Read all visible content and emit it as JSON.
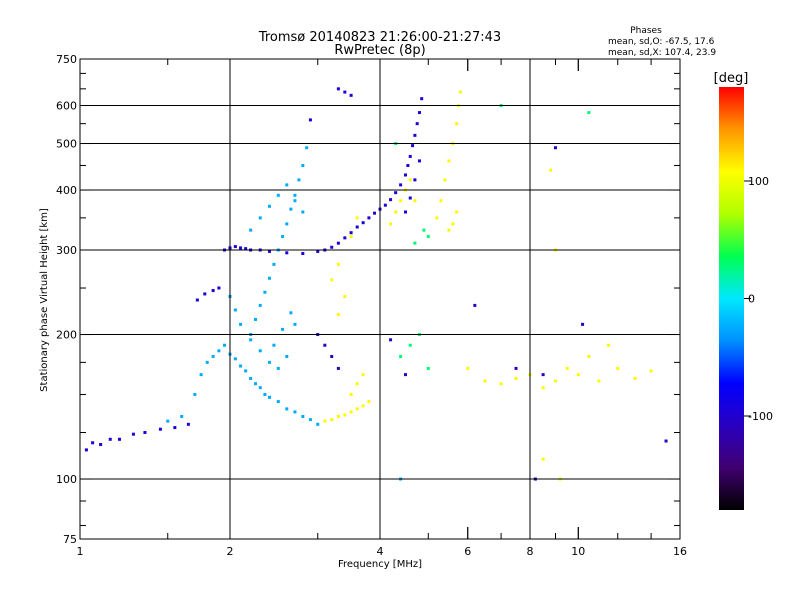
{
  "chart_data": {
    "type": "scatter",
    "title": "Tromsø 20140823 21:26:00-21:27:43",
    "subtitle": "RwPretec (8p)",
    "xlabel": "Frequency [MHz]",
    "ylabel": "Stationary phase Virtual Height [km]",
    "x_scale": "log",
    "y_scale": "log",
    "xlim": [
      1,
      16
    ],
    "ylim": [
      75,
      750
    ],
    "x_ticks": [
      1,
      2,
      4,
      6,
      8,
      10,
      16
    ],
    "y_ticks": [
      75,
      100,
      200,
      300,
      400,
      500,
      600,
      750
    ],
    "x_major_grid": [
      2,
      4,
      8
    ],
    "y_major_grid": [
      100,
      200,
      300,
      400,
      500,
      600
    ],
    "x_minor_ticks": [
      1.5,
      3,
      5,
      6,
      7,
      9,
      10,
      12,
      14
    ],
    "y_minor_ticks": [
      80,
      90,
      125,
      150,
      175,
      250,
      350,
      450,
      550,
      650,
      700
    ],
    "grid": true,
    "phase_box": {
      "title": "Phases",
      "line1": "mean, sd,O: -67.5, 17.6",
      "line2": "mean, sd,X: 107.4, 23.9"
    },
    "colorbar": {
      "label": "[deg]",
      "range": [
        -180,
        180
      ],
      "ticks": [
        100,
        0,
        -100
      ],
      "colormap": [
        "#000000",
        "#400070",
        "#2a00c0",
        "#0000ff",
        "#0090ff",
        "#00e8ff",
        "#00ff50",
        "#b0ff00",
        "#ffff00",
        "#ff9600",
        "#ff0000"
      ]
    },
    "series": [
      {
        "phase": -95,
        "points": [
          [
            1.03,
            115
          ],
          [
            1.06,
            119
          ],
          [
            1.1,
            118
          ],
          [
            1.15,
            121
          ],
          [
            1.2,
            121
          ],
          [
            1.28,
            124
          ],
          [
            1.35,
            125
          ],
          [
            1.45,
            127
          ],
          [
            1.55,
            128
          ],
          [
            1.65,
            130
          ],
          [
            1.72,
            236
          ],
          [
            1.78,
            243
          ],
          [
            1.85,
            247
          ],
          [
            1.9,
            250
          ],
          [
            1.95,
            300
          ],
          [
            2.0,
            303
          ],
          [
            2.05,
            305
          ],
          [
            2.1,
            303
          ],
          [
            2.15,
            302
          ],
          [
            2.2,
            300
          ],
          [
            2.3,
            300
          ],
          [
            2.4,
            298
          ],
          [
            2.6,
            296
          ],
          [
            2.8,
            295
          ],
          [
            3.0,
            298
          ],
          [
            3.1,
            300
          ],
          [
            3.2,
            304
          ],
          [
            3.3,
            310
          ],
          [
            3.4,
            318
          ],
          [
            3.5,
            326
          ],
          [
            3.6,
            335
          ],
          [
            3.7,
            342
          ],
          [
            3.8,
            350
          ],
          [
            3.9,
            358
          ],
          [
            4.0,
            365
          ],
          [
            4.1,
            372
          ],
          [
            4.2,
            382
          ],
          [
            4.3,
            395
          ],
          [
            4.4,
            410
          ],
          [
            4.5,
            430
          ],
          [
            4.55,
            450
          ],
          [
            4.6,
            470
          ],
          [
            4.65,
            495
          ],
          [
            4.7,
            520
          ],
          [
            4.75,
            550
          ],
          [
            4.8,
            580
          ],
          [
            4.85,
            620
          ],
          [
            4.5,
            360
          ],
          [
            4.6,
            385
          ],
          [
            4.7,
            420
          ],
          [
            4.8,
            460
          ],
          [
            3.3,
            650
          ],
          [
            3.4,
            640
          ],
          [
            3.5,
            630
          ],
          [
            2.9,
            560
          ]
        ]
      },
      {
        "phase": -25,
        "points": [
          [
            1.5,
            132
          ],
          [
            1.6,
            135
          ],
          [
            1.7,
            150
          ],
          [
            1.75,
            165
          ],
          [
            1.8,
            175
          ],
          [
            1.85,
            180
          ],
          [
            1.9,
            185
          ],
          [
            1.95,
            190
          ],
          [
            2.0,
            182
          ],
          [
            2.05,
            178
          ],
          [
            2.1,
            172
          ],
          [
            2.15,
            168
          ],
          [
            2.2,
            162
          ],
          [
            2.25,
            158
          ],
          [
            2.3,
            155
          ],
          [
            2.35,
            150
          ],
          [
            2.4,
            148
          ],
          [
            2.5,
            145
          ],
          [
            2.6,
            140
          ],
          [
            2.7,
            138
          ],
          [
            2.8,
            135
          ],
          [
            2.9,
            133
          ],
          [
            3.0,
            130
          ],
          [
            2.2,
            200
          ],
          [
            2.25,
            215
          ],
          [
            2.3,
            230
          ],
          [
            2.35,
            245
          ],
          [
            2.4,
            262
          ],
          [
            2.45,
            280
          ],
          [
            2.5,
            300
          ],
          [
            2.55,
            320
          ],
          [
            2.6,
            340
          ],
          [
            2.65,
            365
          ],
          [
            2.7,
            390
          ],
          [
            2.75,
            420
          ],
          [
            2.8,
            450
          ],
          [
            2.85,
            490
          ],
          [
            2.45,
            190
          ],
          [
            2.55,
            205
          ],
          [
            2.65,
            222
          ],
          [
            2.7,
            210
          ],
          [
            2.6,
            180
          ],
          [
            2.5,
            170
          ],
          [
            2.4,
            175
          ],
          [
            2.3,
            185
          ],
          [
            2.2,
            195
          ],
          [
            2.1,
            210
          ],
          [
            2.05,
            225
          ],
          [
            2.0,
            240
          ],
          [
            2.2,
            330
          ],
          [
            2.3,
            350
          ],
          [
            2.4,
            370
          ],
          [
            2.5,
            390
          ],
          [
            2.6,
            410
          ],
          [
            2.7,
            380
          ],
          [
            2.8,
            360
          ],
          [
            4.4,
            100
          ]
        ]
      },
      {
        "phase": 110,
        "points": [
          [
            3.1,
            132
          ],
          [
            3.2,
            133
          ],
          [
            3.3,
            135
          ],
          [
            3.4,
            136
          ],
          [
            3.5,
            138
          ],
          [
            3.6,
            140
          ],
          [
            3.7,
            142
          ],
          [
            3.8,
            145
          ],
          [
            3.5,
            150
          ],
          [
            3.6,
            158
          ],
          [
            3.7,
            165
          ],
          [
            3.3,
            220
          ],
          [
            3.4,
            240
          ],
          [
            3.2,
            260
          ],
          [
            3.3,
            280
          ],
          [
            3.5,
            320
          ],
          [
            3.6,
            350
          ],
          [
            4.2,
            340
          ],
          [
            4.3,
            360
          ],
          [
            4.4,
            380
          ],
          [
            4.5,
            400
          ],
          [
            4.6,
            420
          ],
          [
            4.7,
            380
          ],
          [
            5.2,
            350
          ],
          [
            5.3,
            380
          ],
          [
            5.4,
            420
          ],
          [
            5.5,
            460
          ],
          [
            5.6,
            500
          ],
          [
            5.7,
            550
          ],
          [
            5.75,
            600
          ],
          [
            5.8,
            640
          ],
          [
            5.5,
            330
          ],
          [
            5.6,
            340
          ],
          [
            5.7,
            360
          ],
          [
            6.0,
            170
          ],
          [
            6.5,
            160
          ],
          [
            7.0,
            158
          ],
          [
            7.5,
            162
          ],
          [
            8.0,
            165
          ],
          [
            8.5,
            155
          ],
          [
            9.0,
            160
          ],
          [
            9.5,
            170
          ],
          [
            10.0,
            165
          ],
          [
            11.0,
            160
          ],
          [
            12.0,
            170
          ],
          [
            13.0,
            162
          ],
          [
            14.0,
            168
          ],
          [
            10.5,
            180
          ],
          [
            11.5,
            190
          ],
          [
            8.8,
            440
          ],
          [
            9.0,
            300
          ],
          [
            8.5,
            110
          ],
          [
            9.2,
            100
          ]
        ]
      },
      {
        "phase": 30,
        "points": [
          [
            4.4,
            180
          ],
          [
            4.6,
            190
          ],
          [
            4.8,
            200
          ],
          [
            5.0,
            170
          ],
          [
            7.0,
            600
          ],
          [
            4.7,
            310
          ],
          [
            4.9,
            330
          ],
          [
            5.0,
            320
          ],
          [
            4.3,
            500
          ],
          [
            10.5,
            580
          ]
        ]
      },
      {
        "phase": -110,
        "points": [
          [
            3.0,
            200
          ],
          [
            3.1,
            190
          ],
          [
            3.2,
            180
          ],
          [
            3.3,
            170
          ],
          [
            4.2,
            195
          ],
          [
            4.5,
            165
          ],
          [
            6.2,
            230
          ],
          [
            7.5,
            170
          ],
          [
            8.5,
            165
          ],
          [
            9.0,
            490
          ],
          [
            10.2,
            210
          ],
          [
            15.0,
            120
          ],
          [
            8.2,
            100
          ]
        ]
      }
    ]
  }
}
